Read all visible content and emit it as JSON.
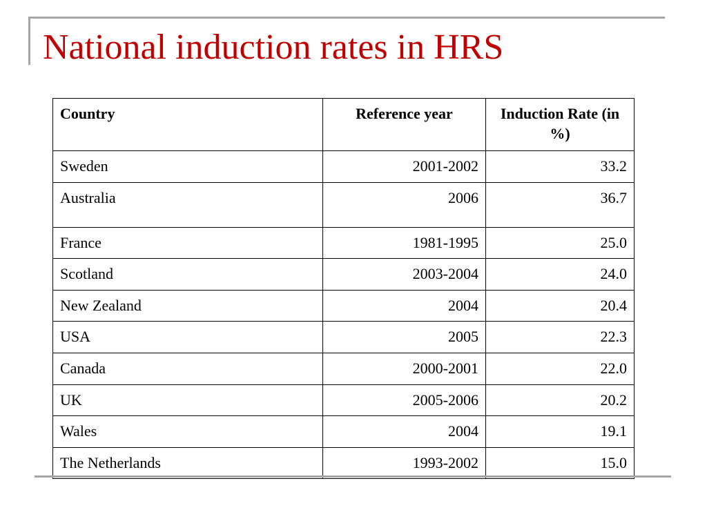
{
  "title": "National induction rates in HRS",
  "table": {
    "headers": [
      "Country",
      "Reference year",
      "Induction Rate (in %)"
    ],
    "rows": [
      {
        "country": "Sweden",
        "year": "2001-2002",
        "rate": "33.2"
      },
      {
        "country": "Australia",
        "year": "2006",
        "rate": "36.7"
      },
      {
        "country": "France",
        "year": "1981-1995",
        "rate": "25.0"
      },
      {
        "country": "Scotland",
        "year": "2003-2004",
        "rate": "24.0"
      },
      {
        "country": "New Zealand",
        "year": "2004",
        "rate": "20.4"
      },
      {
        "country": "USA",
        "year": "2005",
        "rate": "22.3"
      },
      {
        "country": "Canada",
        "year": "2000-2001",
        "rate": "22.0"
      },
      {
        "country": "UK",
        "year": "2005-2006",
        "rate": "20.2"
      },
      {
        "country": "Wales",
        "year": "2004",
        "rate": "19.1"
      },
      {
        "country": "The Netherlands",
        "year": "1993-2002",
        "rate": "15.0"
      }
    ]
  },
  "colors": {
    "title": "#c00000",
    "rule": "#a6a6a6",
    "text": "#000000"
  }
}
